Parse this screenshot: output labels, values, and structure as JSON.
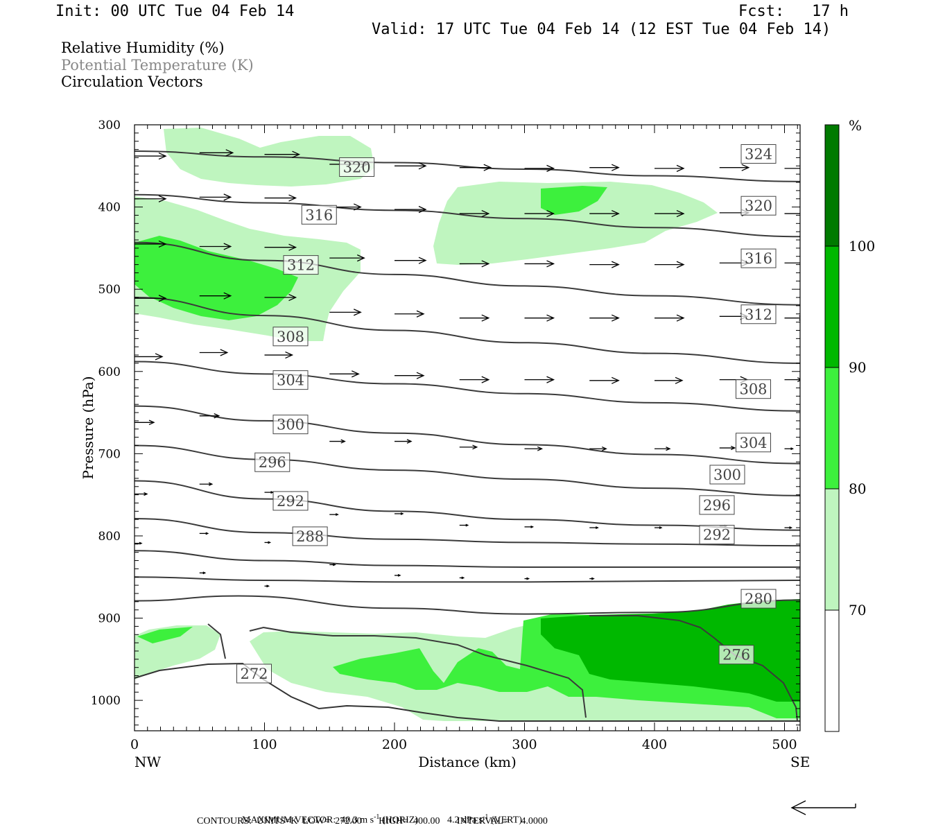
{
  "header": {
    "init": "Init: 00 UTC Tue 04 Feb 14",
    "fcst": "Fcst:   17 h",
    "valid": "Valid: 17 UTC Tue 04 Feb 14 (12 EST Tue 04 Feb 14)"
  },
  "legend": {
    "rh": "Relative Humidity (%)",
    "theta": "Potential Temperature (K)",
    "vectors": "Circulation Vectors"
  },
  "footer": {
    "max_vector_label": "MAXIMUM VECTOR:",
    "horiz_value": "40.3 m s",
    "horiz_unit": "(HORIZ)",
    "vert_value": "4.2 dPa s",
    "vert_unit": "(VERT)",
    "exponent": "-1",
    "contours": "CONTOURS:  UNITS=K  LOW=  272.00       HIGH=  400.00       INTERVAL=     4.0000"
  },
  "colors": {
    "rh_70_80": "#bff5bf",
    "rh_80_90": "#3df03d",
    "rh_90_100": "#00b800",
    "rh_100": "#007a00",
    "contour": "#3a3a3a"
  },
  "chart_data": {
    "type": "cross-section",
    "xlabel": "Distance (km)",
    "ylabel": "Pressure (hPa)",
    "xlim": [
      0,
      512
    ],
    "ylim": [
      1037,
      300
    ],
    "x_ticks": [
      "0",
      "100",
      "200",
      "300",
      "400",
      "500"
    ],
    "y_ticks": [
      "300",
      "400",
      "500",
      "600",
      "700",
      "800",
      "900",
      "1000"
    ],
    "left_end": "NW",
    "right_end": "SE",
    "colorbar": {
      "unit": "%",
      "levels": [
        "70",
        "80",
        "90",
        "100"
      ]
    },
    "contour_labels": [
      {
        "t": "324",
        "x": 480,
        "p": 335
      },
      {
        "t": "320",
        "x": 171,
        "p": 351
      },
      {
        "t": "320",
        "x": 480,
        "p": 398
      },
      {
        "t": "316",
        "x": 142,
        "p": 409
      },
      {
        "t": "316",
        "x": 480,
        "p": 462
      },
      {
        "t": "312",
        "x": 128,
        "p": 470
      },
      {
        "t": "312",
        "x": 480,
        "p": 530
      },
      {
        "t": "308",
        "x": 120,
        "p": 557
      },
      {
        "t": "308",
        "x": 476,
        "p": 621
      },
      {
        "t": "304",
        "x": 120,
        "p": 610
      },
      {
        "t": "304",
        "x": 476,
        "p": 686
      },
      {
        "t": "300",
        "x": 120,
        "p": 664
      },
      {
        "t": "300",
        "x": 456,
        "p": 725
      },
      {
        "t": "296",
        "x": 106,
        "p": 710
      },
      {
        "t": "296",
        "x": 448,
        "p": 762
      },
      {
        "t": "292",
        "x": 120,
        "p": 757
      },
      {
        "t": "292",
        "x": 448,
        "p": 798
      },
      {
        "t": "288",
        "x": 135,
        "p": 800
      },
      {
        "t": "280",
        "x": 480,
        "p": 876
      },
      {
        "t": "276",
        "x": 463,
        "p": 944
      },
      {
        "t": "272",
        "x": 92,
        "p": 967
      }
    ],
    "isentropes_K": [
      {
        "x": [
          0,
          100,
          200,
          300,
          400,
          512
        ],
        "p": [
          332,
          339,
          346,
          354,
          362,
          369
        ]
      },
      {
        "x": [
          0,
          100,
          200,
          300,
          400,
          512
        ],
        "p": [
          385,
          395,
          404,
          414,
          425,
          436
        ]
      },
      {
        "x": [
          0,
          100,
          200,
          300,
          400,
          512
        ],
        "p": [
          443,
          465,
          482,
          496,
          508,
          519
        ]
      },
      {
        "x": [
          0,
          100,
          200,
          300,
          400,
          512
        ],
        "p": [
          510,
          532,
          550,
          565,
          578,
          590
        ]
      },
      {
        "x": [
          0,
          100,
          200,
          300,
          400,
          512
        ],
        "p": [
          588,
          603,
          615,
          627,
          638,
          648
        ]
      },
      {
        "x": [
          0,
          100,
          200,
          300,
          400,
          512
        ],
        "p": [
          642,
          660,
          675,
          689,
          701,
          712
        ]
      },
      {
        "x": [
          0,
          100,
          200,
          300,
          400,
          512
        ],
        "p": [
          690,
          707,
          720,
          731,
          742,
          751
        ]
      },
      {
        "x": [
          0,
          100,
          200,
          300,
          400,
          512
        ],
        "p": [
          733,
          755,
          770,
          780,
          787,
          793
        ]
      },
      {
        "x": [
          0,
          100,
          200,
          300,
          400,
          512
        ],
        "p": [
          779,
          796,
          804,
          808,
          810,
          812
        ]
      },
      {
        "x": [
          0,
          100,
          200,
          300,
          400,
          512
        ],
        "p": [
          818,
          830,
          836,
          838,
          838,
          838
        ]
      },
      {
        "x": [
          0,
          100,
          200,
          300,
          400,
          512
        ],
        "p": [
          850,
          854,
          856,
          856,
          855,
          854
        ]
      },
      {
        "x": [
          0,
          80,
          200,
          300,
          400,
          512
        ],
        "p": [
          879,
          873,
          888,
          895,
          893,
          878
        ]
      }
    ],
    "circulation_arrows": [
      {
        "x": 0,
        "p": 338,
        "l": 45
      },
      {
        "x": 50,
        "p": 334,
        "l": 48
      },
      {
        "x": 100,
        "p": 336,
        "l": 50
      },
      {
        "x": 150,
        "p": 348,
        "l": 55
      },
      {
        "x": 200,
        "p": 350,
        "l": 45
      },
      {
        "x": 250,
        "p": 352,
        "l": 45
      },
      {
        "x": 300,
        "p": 353,
        "l": 42
      },
      {
        "x": 350,
        "p": 352,
        "l": 42
      },
      {
        "x": 400,
        "p": 353,
        "l": 42
      },
      {
        "x": 450,
        "p": 352,
        "l": 42
      },
      {
        "x": 500,
        "p": 353,
        "l": 30
      },
      {
        "x": 0,
        "p": 390,
        "l": 45
      },
      {
        "x": 50,
        "p": 388,
        "l": 45
      },
      {
        "x": 100,
        "p": 389,
        "l": 45
      },
      {
        "x": 150,
        "p": 400,
        "l": 45
      },
      {
        "x": 200,
        "p": 403,
        "l": 45
      },
      {
        "x": 250,
        "p": 408,
        "l": 42
      },
      {
        "x": 300,
        "p": 408,
        "l": 42
      },
      {
        "x": 350,
        "p": 408,
        "l": 42
      },
      {
        "x": 400,
        "p": 408,
        "l": 42
      },
      {
        "x": 450,
        "p": 407,
        "l": 42
      },
      {
        "x": 500,
        "p": 408,
        "l": 30
      },
      {
        "x": 0,
        "p": 445,
        "l": 45
      },
      {
        "x": 50,
        "p": 448,
        "l": 45
      },
      {
        "x": 100,
        "p": 449,
        "l": 45
      },
      {
        "x": 150,
        "p": 462,
        "l": 50
      },
      {
        "x": 200,
        "p": 465,
        "l": 45
      },
      {
        "x": 250,
        "p": 469,
        "l": 42
      },
      {
        "x": 300,
        "p": 469,
        "l": 42
      },
      {
        "x": 350,
        "p": 470,
        "l": 42
      },
      {
        "x": 400,
        "p": 470,
        "l": 42
      },
      {
        "x": 450,
        "p": 468,
        "l": 42
      },
      {
        "x": 500,
        "p": 468,
        "l": 30
      },
      {
        "x": 0,
        "p": 511,
        "l": 45
      },
      {
        "x": 50,
        "p": 508,
        "l": 45
      },
      {
        "x": 100,
        "p": 510,
        "l": 45
      },
      {
        "x": 150,
        "p": 528,
        "l": 45
      },
      {
        "x": 200,
        "p": 530,
        "l": 42
      },
      {
        "x": 250,
        "p": 535,
        "l": 42
      },
      {
        "x": 300,
        "p": 535,
        "l": 42
      },
      {
        "x": 350,
        "p": 535,
        "l": 42
      },
      {
        "x": 400,
        "p": 535,
        "l": 42
      },
      {
        "x": 450,
        "p": 533,
        "l": 40
      },
      {
        "x": 500,
        "p": 535,
        "l": 28
      },
      {
        "x": 0,
        "p": 582,
        "l": 40
      },
      {
        "x": 50,
        "p": 577,
        "l": 40
      },
      {
        "x": 100,
        "p": 580,
        "l": 40
      },
      {
        "x": 150,
        "p": 603,
        "l": 42
      },
      {
        "x": 200,
        "p": 605,
        "l": 42
      },
      {
        "x": 250,
        "p": 610,
        "l": 42
      },
      {
        "x": 300,
        "p": 610,
        "l": 42
      },
      {
        "x": 350,
        "p": 611,
        "l": 42
      },
      {
        "x": 400,
        "p": 611,
        "l": 40
      },
      {
        "x": 450,
        "p": 610,
        "l": 40
      },
      {
        "x": 500,
        "p": 610,
        "l": 25
      },
      {
        "x": 0,
        "p": 662,
        "l": 28
      },
      {
        "x": 50,
        "p": 654,
        "l": 28
      },
      {
        "x": 150,
        "p": 685,
        "l": 22
      },
      {
        "x": 200,
        "p": 685,
        "l": 24
      },
      {
        "x": 250,
        "p": 692,
        "l": 25
      },
      {
        "x": 300,
        "p": 694,
        "l": 25
      },
      {
        "x": 350,
        "p": 694,
        "l": 24
      },
      {
        "x": 400,
        "p": 694,
        "l": 22
      },
      {
        "x": 450,
        "p": 693,
        "l": 22
      },
      {
        "x": 500,
        "p": 694,
        "l": 12
      },
      {
        "x": 0,
        "p": 749,
        "l": 18
      },
      {
        "x": 50,
        "p": 737,
        "l": 18
      },
      {
        "x": 100,
        "p": 747,
        "l": 12
      },
      {
        "x": 150,
        "p": 774,
        "l": 12
      },
      {
        "x": 200,
        "p": 773,
        "l": 12
      },
      {
        "x": 250,
        "p": 787,
        "l": 12
      },
      {
        "x": 300,
        "p": 789,
        "l": 12
      },
      {
        "x": 350,
        "p": 790,
        "l": 12
      },
      {
        "x": 400,
        "p": 790,
        "l": 10
      },
      {
        "x": 450,
        "p": 788,
        "l": 10
      },
      {
        "x": 500,
        "p": 790,
        "l": 10
      },
      {
        "x": 0,
        "p": 809,
        "l": 10
      },
      {
        "x": 50,
        "p": 797,
        "l": 12
      },
      {
        "x": 100,
        "p": 808,
        "l": 8
      },
      {
        "x": 50,
        "p": 845,
        "l": 8
      },
      {
        "x": 100,
        "p": 861,
        "l": 6
      },
      {
        "x": 150,
        "p": 835,
        "l": 8
      },
      {
        "x": 200,
        "p": 848,
        "l": 8
      },
      {
        "x": 250,
        "p": 851,
        "l": 6
      },
      {
        "x": 300,
        "p": 852,
        "l": 6
      },
      {
        "x": 350,
        "p": 852,
        "l": 6
      }
    ],
    "max_vector": {
      "horiz": 40.3,
      "vert": 4.2
    }
  }
}
